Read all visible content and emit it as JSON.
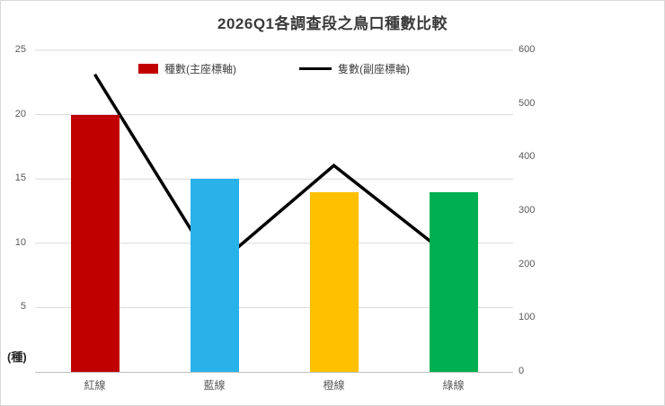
{
  "chart_data": {
    "type": "bar",
    "combo": true,
    "title": "2026Q1各調查段之鳥口種數比較",
    "categories": [
      "紅線",
      "藍線",
      "橙線",
      "綠線"
    ],
    "series": [
      {
        "name": "種數(主座標軸)",
        "type": "bar",
        "axis": "left",
        "values": [
          20,
          15,
          14,
          14
        ],
        "colors": [
          "#c00000",
          "#29b2ea",
          "#ffc000",
          "#00b050"
        ]
      },
      {
        "name": "隻數(副座標軸)",
        "type": "line",
        "axis": "right",
        "values": [
          555,
          195,
          385,
          210
        ],
        "color": "#000000"
      }
    ],
    "left_axis": {
      "min": 0,
      "max": 25,
      "ticks": [
        25,
        20,
        15,
        10,
        5
      ],
      "unit_label": "(種)"
    },
    "right_axis": {
      "min": 0,
      "max": 600,
      "ticks": [
        600,
        500,
        400,
        300,
        200,
        100,
        0
      ]
    },
    "grid": true,
    "legend_position": "top-center",
    "colors": {
      "grid": "#d9d9d9",
      "axis": "#bfbfbf",
      "tick_text": "#595959",
      "title_text": "#3a3a3a",
      "legend_bar_swatch": "#c00000",
      "legend_line_swatch": "#000000"
    }
  }
}
